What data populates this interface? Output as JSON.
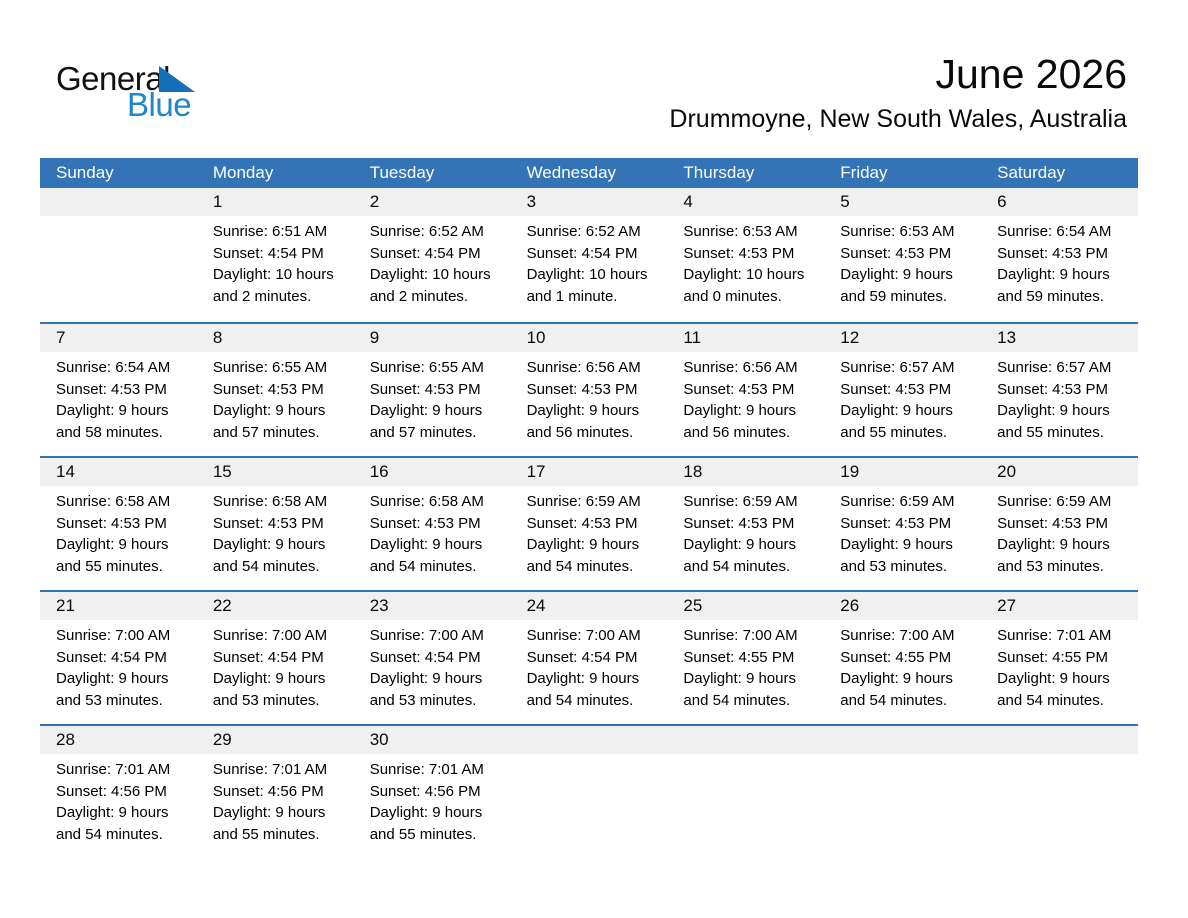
{
  "logo": {
    "word1": "General",
    "word2": "Blue"
  },
  "header": {
    "title": "June 2026",
    "subtitle": "Drummoyne, New South Wales, Australia"
  },
  "colors": {
    "header-blue": "#3274b5",
    "line-blue": "#2e74b5",
    "band-gray": "#f0f0f0",
    "logo-blue": "#1e87c9",
    "logo-triangle-blue": "#1470b8",
    "text-black": "#000000"
  },
  "calendar": {
    "weekday_headers": [
      "Sunday",
      "Monday",
      "Tuesday",
      "Wednesday",
      "Thursday",
      "Friday",
      "Saturday"
    ],
    "weeks": [
      [
        null,
        {
          "day": "1",
          "sunrise": "Sunrise: 6:51 AM",
          "sunset": "Sunset: 4:54 PM",
          "daylight_a": "Daylight: 10 hours",
          "daylight_b": "and 2 minutes."
        },
        {
          "day": "2",
          "sunrise": "Sunrise: 6:52 AM",
          "sunset": "Sunset: 4:54 PM",
          "daylight_a": "Daylight: 10 hours",
          "daylight_b": "and 2 minutes."
        },
        {
          "day": "3",
          "sunrise": "Sunrise: 6:52 AM",
          "sunset": "Sunset: 4:54 PM",
          "daylight_a": "Daylight: 10 hours",
          "daylight_b": "and 1 minute."
        },
        {
          "day": "4",
          "sunrise": "Sunrise: 6:53 AM",
          "sunset": "Sunset: 4:53 PM",
          "daylight_a": "Daylight: 10 hours",
          "daylight_b": "and 0 minutes."
        },
        {
          "day": "5",
          "sunrise": "Sunrise: 6:53 AM",
          "sunset": "Sunset: 4:53 PM",
          "daylight_a": "Daylight: 9 hours",
          "daylight_b": "and 59 minutes."
        },
        {
          "day": "6",
          "sunrise": "Sunrise: 6:54 AM",
          "sunset": "Sunset: 4:53 PM",
          "daylight_a": "Daylight: 9 hours",
          "daylight_b": "and 59 minutes."
        }
      ],
      [
        {
          "day": "7",
          "sunrise": "Sunrise: 6:54 AM",
          "sunset": "Sunset: 4:53 PM",
          "daylight_a": "Daylight: 9 hours",
          "daylight_b": "and 58 minutes."
        },
        {
          "day": "8",
          "sunrise": "Sunrise: 6:55 AM",
          "sunset": "Sunset: 4:53 PM",
          "daylight_a": "Daylight: 9 hours",
          "daylight_b": "and 57 minutes."
        },
        {
          "day": "9",
          "sunrise": "Sunrise: 6:55 AM",
          "sunset": "Sunset: 4:53 PM",
          "daylight_a": "Daylight: 9 hours",
          "daylight_b": "and 57 minutes."
        },
        {
          "day": "10",
          "sunrise": "Sunrise: 6:56 AM",
          "sunset": "Sunset: 4:53 PM",
          "daylight_a": "Daylight: 9 hours",
          "daylight_b": "and 56 minutes."
        },
        {
          "day": "11",
          "sunrise": "Sunrise: 6:56 AM",
          "sunset": "Sunset: 4:53 PM",
          "daylight_a": "Daylight: 9 hours",
          "daylight_b": "and 56 minutes."
        },
        {
          "day": "12",
          "sunrise": "Sunrise: 6:57 AM",
          "sunset": "Sunset: 4:53 PM",
          "daylight_a": "Daylight: 9 hours",
          "daylight_b": "and 55 minutes."
        },
        {
          "day": "13",
          "sunrise": "Sunrise: 6:57 AM",
          "sunset": "Sunset: 4:53 PM",
          "daylight_a": "Daylight: 9 hours",
          "daylight_b": "and 55 minutes."
        }
      ],
      [
        {
          "day": "14",
          "sunrise": "Sunrise: 6:58 AM",
          "sunset": "Sunset: 4:53 PM",
          "daylight_a": "Daylight: 9 hours",
          "daylight_b": "and 55 minutes."
        },
        {
          "day": "15",
          "sunrise": "Sunrise: 6:58 AM",
          "sunset": "Sunset: 4:53 PM",
          "daylight_a": "Daylight: 9 hours",
          "daylight_b": "and 54 minutes."
        },
        {
          "day": "16",
          "sunrise": "Sunrise: 6:58 AM",
          "sunset": "Sunset: 4:53 PM",
          "daylight_a": "Daylight: 9 hours",
          "daylight_b": "and 54 minutes."
        },
        {
          "day": "17",
          "sunrise": "Sunrise: 6:59 AM",
          "sunset": "Sunset: 4:53 PM",
          "daylight_a": "Daylight: 9 hours",
          "daylight_b": "and 54 minutes."
        },
        {
          "day": "18",
          "sunrise": "Sunrise: 6:59 AM",
          "sunset": "Sunset: 4:53 PM",
          "daylight_a": "Daylight: 9 hours",
          "daylight_b": "and 54 minutes."
        },
        {
          "day": "19",
          "sunrise": "Sunrise: 6:59 AM",
          "sunset": "Sunset: 4:53 PM",
          "daylight_a": "Daylight: 9 hours",
          "daylight_b": "and 53 minutes."
        },
        {
          "day": "20",
          "sunrise": "Sunrise: 6:59 AM",
          "sunset": "Sunset: 4:53 PM",
          "daylight_a": "Daylight: 9 hours",
          "daylight_b": "and 53 minutes."
        }
      ],
      [
        {
          "day": "21",
          "sunrise": "Sunrise: 7:00 AM",
          "sunset": "Sunset: 4:54 PM",
          "daylight_a": "Daylight: 9 hours",
          "daylight_b": "and 53 minutes."
        },
        {
          "day": "22",
          "sunrise": "Sunrise: 7:00 AM",
          "sunset": "Sunset: 4:54 PM",
          "daylight_a": "Daylight: 9 hours",
          "daylight_b": "and 53 minutes."
        },
        {
          "day": "23",
          "sunrise": "Sunrise: 7:00 AM",
          "sunset": "Sunset: 4:54 PM",
          "daylight_a": "Daylight: 9 hours",
          "daylight_b": "and 53 minutes."
        },
        {
          "day": "24",
          "sunrise": "Sunrise: 7:00 AM",
          "sunset": "Sunset: 4:54 PM",
          "daylight_a": "Daylight: 9 hours",
          "daylight_b": "and 54 minutes."
        },
        {
          "day": "25",
          "sunrise": "Sunrise: 7:00 AM",
          "sunset": "Sunset: 4:55 PM",
          "daylight_a": "Daylight: 9 hours",
          "daylight_b": "and 54 minutes."
        },
        {
          "day": "26",
          "sunrise": "Sunrise: 7:00 AM",
          "sunset": "Sunset: 4:55 PM",
          "daylight_a": "Daylight: 9 hours",
          "daylight_b": "and 54 minutes."
        },
        {
          "day": "27",
          "sunrise": "Sunrise: 7:01 AM",
          "sunset": "Sunset: 4:55 PM",
          "daylight_a": "Daylight: 9 hours",
          "daylight_b": "and 54 minutes."
        }
      ],
      [
        {
          "day": "28",
          "sunrise": "Sunrise: 7:01 AM",
          "sunset": "Sunset: 4:56 PM",
          "daylight_a": "Daylight: 9 hours",
          "daylight_b": "and 54 minutes."
        },
        {
          "day": "29",
          "sunrise": "Sunrise: 7:01 AM",
          "sunset": "Sunset: 4:56 PM",
          "daylight_a": "Daylight: 9 hours",
          "daylight_b": "and 55 minutes."
        },
        {
          "day": "30",
          "sunrise": "Sunrise: 7:01 AM",
          "sunset": "Sunset: 4:56 PM",
          "daylight_a": "Daylight: 9 hours",
          "daylight_b": "and 55 minutes."
        },
        null,
        null,
        null,
        null
      ]
    ]
  }
}
